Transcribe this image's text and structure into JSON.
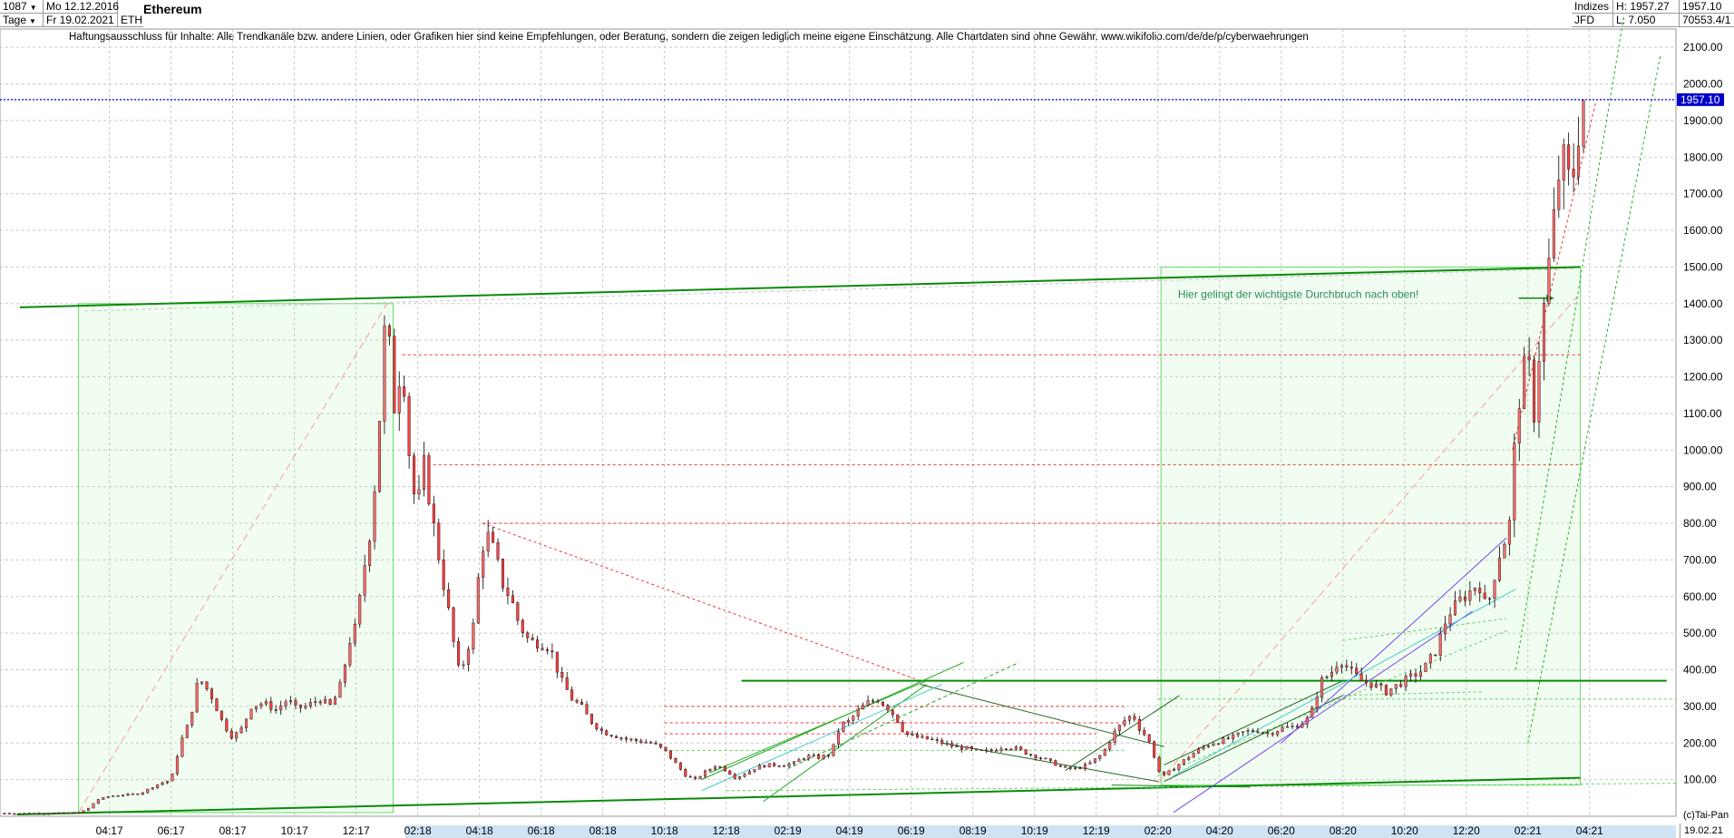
{
  "header": {
    "count": "1087",
    "period": "Tage",
    "start_date": "Mo 12.12.2016",
    "end_date": "Fr 19.02.2021",
    "symbol": "ETH",
    "title": "Ethereum",
    "exchange_1": "Indizes",
    "exchange_2": "JFD",
    "high": "H: 1957.27",
    "low": "L: 7.050",
    "last": "1957.10",
    "volume": "70553.4/1"
  },
  "disclaimer": "Haftungsausschluss für Inhalte: Alle Trendkanäle bzw. andere Linien, oder Grafiken hier sind keine Empfehlungen, oder Beratung, sondern die zeigen lediglich meine eigene Einschätzung. Alle Chartdaten sind ohne Gewähr.  www.wikifolio.com/de/de/p/cyberwaehrungen",
  "annotation": "Hier gelingt der wichtigste Durchbruch nach oben!",
  "copyright": "(c)Tai-Pan",
  "footer_date": "19.02.21",
  "price_tag": "1957.10",
  "colors": {
    "up": "#ff6b6b",
    "down": "#ff4040",
    "wick": "#000000",
    "trend": "#009900",
    "price_line": "#0000cc"
  },
  "chart_data": {
    "type": "candlestick",
    "title": "Ethereum",
    "y_ticks": [
      100,
      200,
      300,
      400,
      500,
      600,
      700,
      800,
      900,
      1000,
      1100,
      1200,
      1300,
      1400,
      1500,
      1600,
      1700,
      1800,
      1900,
      2000,
      2100
    ],
    "y_tick_labels": [
      "100.00",
      "200.00",
      "300.00",
      "400.00",
      "500.00",
      "600.00",
      "700.00",
      "800.00",
      "900.00",
      "1000.00",
      "1100.00",
      "1200.00",
      "1300.00",
      "1400.00",
      "1500.00",
      "1600.00",
      "1700.00",
      "1800.00",
      "1900.00",
      "2000.00",
      "2100.00"
    ],
    "ylim": [
      0,
      2150
    ],
    "x_ticks": [
      "04:17",
      "06:17",
      "08:17",
      "10:17",
      "12:17",
      "02:18",
      "04:18",
      "06:18",
      "08:18",
      "10:18",
      "12:18",
      "02:19",
      "04:19",
      "06:19",
      "08:19",
      "10:19",
      "12:19",
      "02:20",
      "04:20",
      "06:20",
      "08:20",
      "10:20",
      "12:20",
      "02:21",
      "04:21"
    ],
    "x_tick_months": [
      4,
      6,
      8,
      10,
      12,
      14,
      16,
      18,
      20,
      22,
      24,
      26,
      28,
      30,
      32,
      34,
      36,
      38,
      40,
      42,
      44,
      46,
      48,
      50,
      52
    ],
    "x_month_range": [
      0.6,
      54.8
    ],
    "current_price": 1957.1,
    "price_path": [
      [
        0.6,
        8
      ],
      [
        2,
        8
      ],
      [
        3,
        9
      ],
      [
        3.3,
        20
      ],
      [
        3.6,
        45
      ],
      [
        4,
        55
      ],
      [
        5,
        62
      ],
      [
        5.5,
        85
      ],
      [
        6,
        100
      ],
      [
        6.3,
        200
      ],
      [
        6.6,
        260
      ],
      [
        6.9,
        380
      ],
      [
        7.3,
        330
      ],
      [
        7.7,
        250
      ],
      [
        8,
        215
      ],
      [
        8.3,
        240
      ],
      [
        8.6,
        300
      ],
      [
        9,
        310
      ],
      [
        9.4,
        290
      ],
      [
        9.8,
        320
      ],
      [
        10,
        295
      ],
      [
        10.4,
        300
      ],
      [
        10.8,
        320
      ],
      [
        11.2,
        300
      ],
      [
        11.5,
        360
      ],
      [
        11.8,
        480
      ],
      [
        12,
        520
      ],
      [
        12.3,
        700
      ],
      [
        12.5,
        800
      ],
      [
        12.7,
        1000
      ],
      [
        12.9,
        1300
      ],
      [
        13,
        1400
      ],
      [
        13.2,
        1100
      ],
      [
        13.5,
        1250
      ],
      [
        13.8,
        900
      ],
      [
        14,
        850
      ],
      [
        14.2,
        960
      ],
      [
        14.5,
        800
      ],
      [
        14.8,
        650
      ],
      [
        15,
        560
      ],
      [
        15.3,
        400
      ],
      [
        15.5,
        420
      ],
      [
        15.8,
        520
      ],
      [
        16,
        680
      ],
      [
        16.2,
        780
      ],
      [
        16.5,
        720
      ],
      [
        16.8,
        620
      ],
      [
        17,
        600
      ],
      [
        17.3,
        520
      ],
      [
        17.6,
        480
      ],
      [
        18,
        470
      ],
      [
        18.3,
        460
      ],
      [
        18.6,
        380
      ],
      [
        19,
        320
      ],
      [
        19.3,
        300
      ],
      [
        19.6,
        260
      ],
      [
        20,
        230
      ],
      [
        20.4,
        220
      ],
      [
        20.8,
        210
      ],
      [
        21.2,
        205
      ],
      [
        21.6,
        200
      ],
      [
        22,
        180
      ],
      [
        22.3,
        150
      ],
      [
        22.7,
        110
      ],
      [
        23,
        100
      ],
      [
        23.3,
        120
      ],
      [
        23.7,
        140
      ],
      [
        24,
        125
      ],
      [
        24.3,
        105
      ],
      [
        24.7,
        120
      ],
      [
        25,
        135
      ],
      [
        25.4,
        140
      ],
      [
        25.8,
        140
      ],
      [
        26.2,
        145
      ],
      [
        26.6,
        165
      ],
      [
        27,
        160
      ],
      [
        27.4,
        170
      ],
      [
        27.7,
        250
      ],
      [
        28,
        260
      ],
      [
        28.3,
        290
      ],
      [
        28.6,
        310
      ],
      [
        28.9,
        320
      ],
      [
        29.2,
        300
      ],
      [
        29.5,
        270
      ],
      [
        29.8,
        225
      ],
      [
        30.2,
        215
      ],
      [
        30.6,
        210
      ],
      [
        31,
        200
      ],
      [
        31.4,
        190
      ],
      [
        31.8,
        185
      ],
      [
        32.2,
        175
      ],
      [
        32.6,
        180
      ],
      [
        33,
        190
      ],
      [
        33.4,
        185
      ],
      [
        33.8,
        170
      ],
      [
        34.2,
        160
      ],
      [
        34.6,
        145
      ],
      [
        35,
        130
      ],
      [
        35.4,
        130
      ],
      [
        35.8,
        145
      ],
      [
        36.2,
        170
      ],
      [
        36.6,
        230
      ],
      [
        37,
        270
      ],
      [
        37.2,
        275
      ],
      [
        37.4,
        240
      ],
      [
        37.6,
        220
      ],
      [
        37.8,
        190
      ],
      [
        38,
        125
      ],
      [
        38.2,
        110
      ],
      [
        38.5,
        130
      ],
      [
        38.8,
        150
      ],
      [
        39.2,
        175
      ],
      [
        39.6,
        195
      ],
      [
        40,
        205
      ],
      [
        40.4,
        215
      ],
      [
        40.8,
        230
      ],
      [
        41.2,
        235
      ],
      [
        41.6,
        225
      ],
      [
        42,
        240
      ],
      [
        42.4,
        245
      ],
      [
        42.8,
        260
      ],
      [
        43,
        290
      ],
      [
        43.3,
        370
      ],
      [
        43.6,
        390
      ],
      [
        43.9,
        430
      ],
      [
        44.2,
        400
      ],
      [
        44.6,
        370
      ],
      [
        45,
        360
      ],
      [
        45.4,
        340
      ],
      [
        45.8,
        360
      ],
      [
        46.2,
        380
      ],
      [
        46.6,
        400
      ],
      [
        47,
        450
      ],
      [
        47.4,
        550
      ],
      [
        47.8,
        590
      ],
      [
        48.2,
        620
      ],
      [
        48.4,
        640
      ],
      [
        48.6,
        580
      ],
      [
        48.8,
        600
      ],
      [
        49,
        700
      ],
      [
        49.2,
        740
      ],
      [
        49.4,
        800
      ],
      [
        49.6,
        1050
      ],
      [
        49.8,
        1200
      ],
      [
        50,
        1250
      ],
      [
        50.2,
        1100
      ],
      [
        50.4,
        1300
      ],
      [
        50.6,
        1450
      ],
      [
        50.8,
        1600
      ],
      [
        51,
        1750
      ],
      [
        51.2,
        1800
      ],
      [
        51.4,
        1700
      ],
      [
        51.6,
        1850
      ],
      [
        51.8,
        1957
      ]
    ]
  }
}
